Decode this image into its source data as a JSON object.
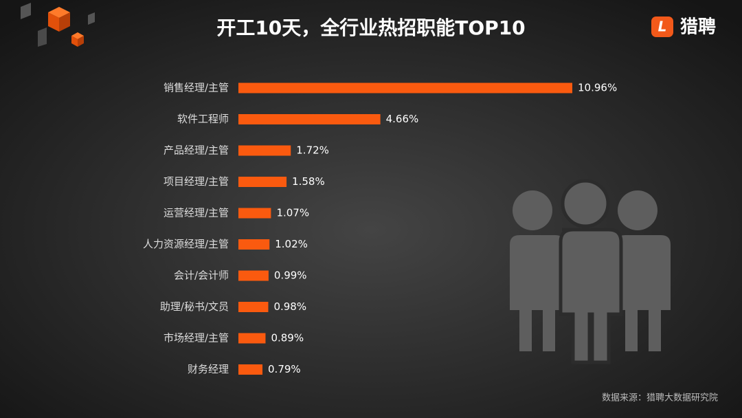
{
  "chart_data": {
    "type": "bar",
    "orientation": "horizontal",
    "title": "开工10天，全行业热招职能TOP10",
    "brand": "猎聘",
    "brand_icon": "L",
    "source": "数据来源：猎聘大数据研究院",
    "categories": [
      "销售经理/主管",
      "软件工程师",
      "产品经理/主管",
      "项目经理/主管",
      "运营经理/主管",
      "人力资源经理/主管",
      "会计/会计师",
      "助理/秘书/文员",
      "市场经理/主管",
      "财务经理"
    ],
    "values": [
      10.96,
      4.66,
      1.72,
      1.58,
      1.07,
      1.02,
      0.99,
      0.98,
      0.89,
      0.79
    ],
    "value_labels": [
      "10.96%",
      "4.66%",
      "1.72%",
      "1.58%",
      "1.07%",
      "1.02%",
      "0.99%",
      "0.98%",
      "0.89%",
      "0.79%"
    ],
    "color": "#fa5a0f"
  }
}
